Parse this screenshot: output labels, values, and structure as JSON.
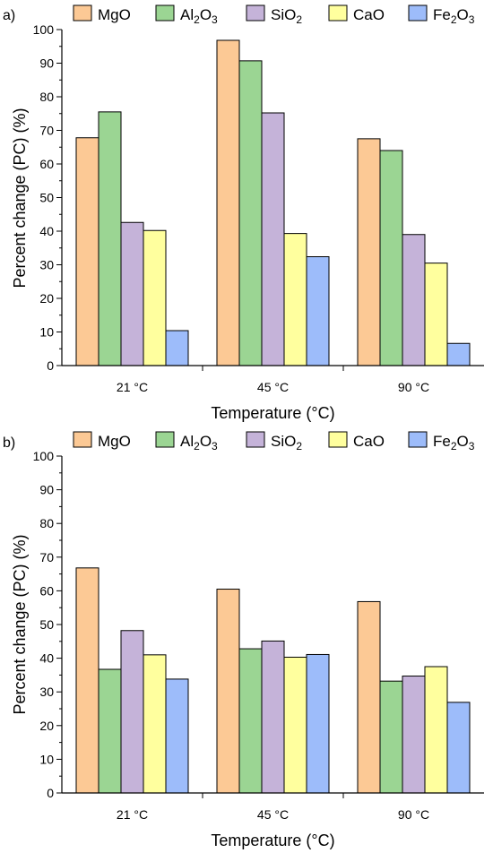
{
  "chart_data": [
    {
      "type": "bar",
      "panel_label": "a)",
      "categories": [
        "21 °C",
        "45 °C",
        "90 °C"
      ],
      "series": [
        {
          "name": "MgO",
          "color": "#fcc995",
          "values": [
            67.8,
            96.8,
            67.5
          ]
        },
        {
          "name": "Al2O3",
          "color": "#9bd593",
          "values": [
            75.5,
            90.7,
            64.0
          ]
        },
        {
          "name": "SiO2",
          "color": "#c5b3d9",
          "values": [
            42.6,
            75.2,
            39.0
          ]
        },
        {
          "name": "CaO",
          "color": "#ffff9e",
          "values": [
            40.2,
            39.3,
            30.5
          ]
        },
        {
          "name": "Fe2O3",
          "color": "#9dbcfa",
          "values": [
            10.4,
            32.4,
            6.6
          ]
        }
      ],
      "xlabel": "Temperature (°C)",
      "ylabel": "Percent change (PC) (%)",
      "ylim": [
        0,
        100
      ],
      "yticks": [
        0,
        10,
        20,
        30,
        40,
        50,
        60,
        70,
        80,
        90,
        100
      ],
      "legend": "top, horizontal"
    },
    {
      "type": "bar",
      "panel_label": "b)",
      "categories": [
        "21 °C",
        "45 °C",
        "90 °C"
      ],
      "series": [
        {
          "name": "MgO",
          "color": "#fcc995",
          "values": [
            66.8,
            60.5,
            56.8
          ]
        },
        {
          "name": "Al2O3",
          "color": "#9bd593",
          "values": [
            36.7,
            42.8,
            33.2
          ]
        },
        {
          "name": "SiO2",
          "color": "#c5b3d9",
          "values": [
            48.2,
            45.1,
            34.7
          ]
        },
        {
          "name": "CaO",
          "color": "#ffff9e",
          "values": [
            41.0,
            40.3,
            37.5
          ]
        },
        {
          "name": "Fe2O3",
          "color": "#9dbcfa",
          "values": [
            33.8,
            41.1,
            26.9
          ]
        }
      ],
      "xlabel": "Temperature (°C)",
      "ylabel": "Percent change (PC) (%)",
      "ylim": [
        0,
        100
      ],
      "yticks": [
        0,
        10,
        20,
        30,
        40,
        50,
        60,
        70,
        80,
        90,
        100
      ],
      "legend": "top, horizontal"
    }
  ]
}
